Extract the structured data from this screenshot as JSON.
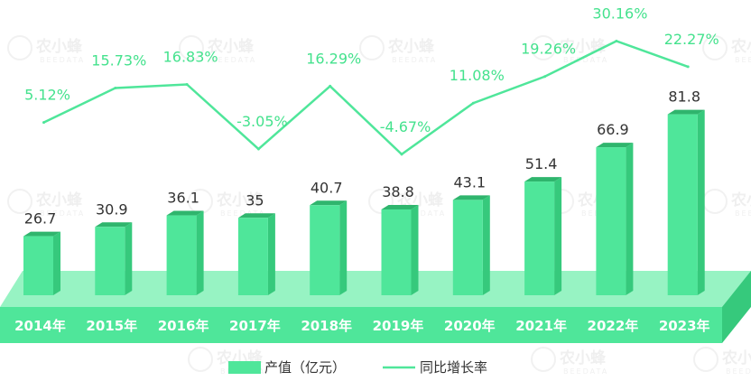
{
  "chart_data": {
    "type": "bar",
    "categories": [
      "2014年",
      "2015年",
      "2016年",
      "2017年",
      "2018年",
      "2019年",
      "2020年",
      "2021年",
      "2022年",
      "2023年"
    ],
    "series": [
      {
        "name": "产值（亿元）",
        "type": "bar",
        "values": [
          26.7,
          30.9,
          36.1,
          35,
          40.7,
          38.8,
          43.1,
          51.4,
          66.9,
          81.8
        ],
        "labels": [
          "26.7",
          "30.9",
          "36.1",
          "35",
          "40.7",
          "38.8",
          "43.1",
          "51.4",
          "66.9",
          "81.8"
        ]
      },
      {
        "name": "同比增长率",
        "type": "line",
        "values": [
          5.12,
          15.73,
          16.83,
          -3.05,
          16.29,
          -4.67,
          11.08,
          19.26,
          30.16,
          22.27
        ],
        "labels": [
          "5.12%",
          "15.73%",
          "16.83%",
          "-3.05%",
          "16.29%",
          "-4.67%",
          "11.08%",
          "19.26%",
          "30.16%",
          "22.27%"
        ]
      }
    ],
    "legend": {
      "position": "bottom"
    },
    "grid": false
  },
  "colors": {
    "bar_front": "#4fe69a",
    "bar_side": "#36c97c",
    "bar_top": "#2fb56d",
    "base_front": "#4fe69a",
    "base_top": "#85f1b8",
    "line": "#4fe69a",
    "pct_text": "#44e28d",
    "value_text": "#333333",
    "axis_text": "#ffffff",
    "legend_text": "#333333"
  },
  "watermark": {
    "text": "农小蜂",
    "subtext": "BEEDATA"
  }
}
